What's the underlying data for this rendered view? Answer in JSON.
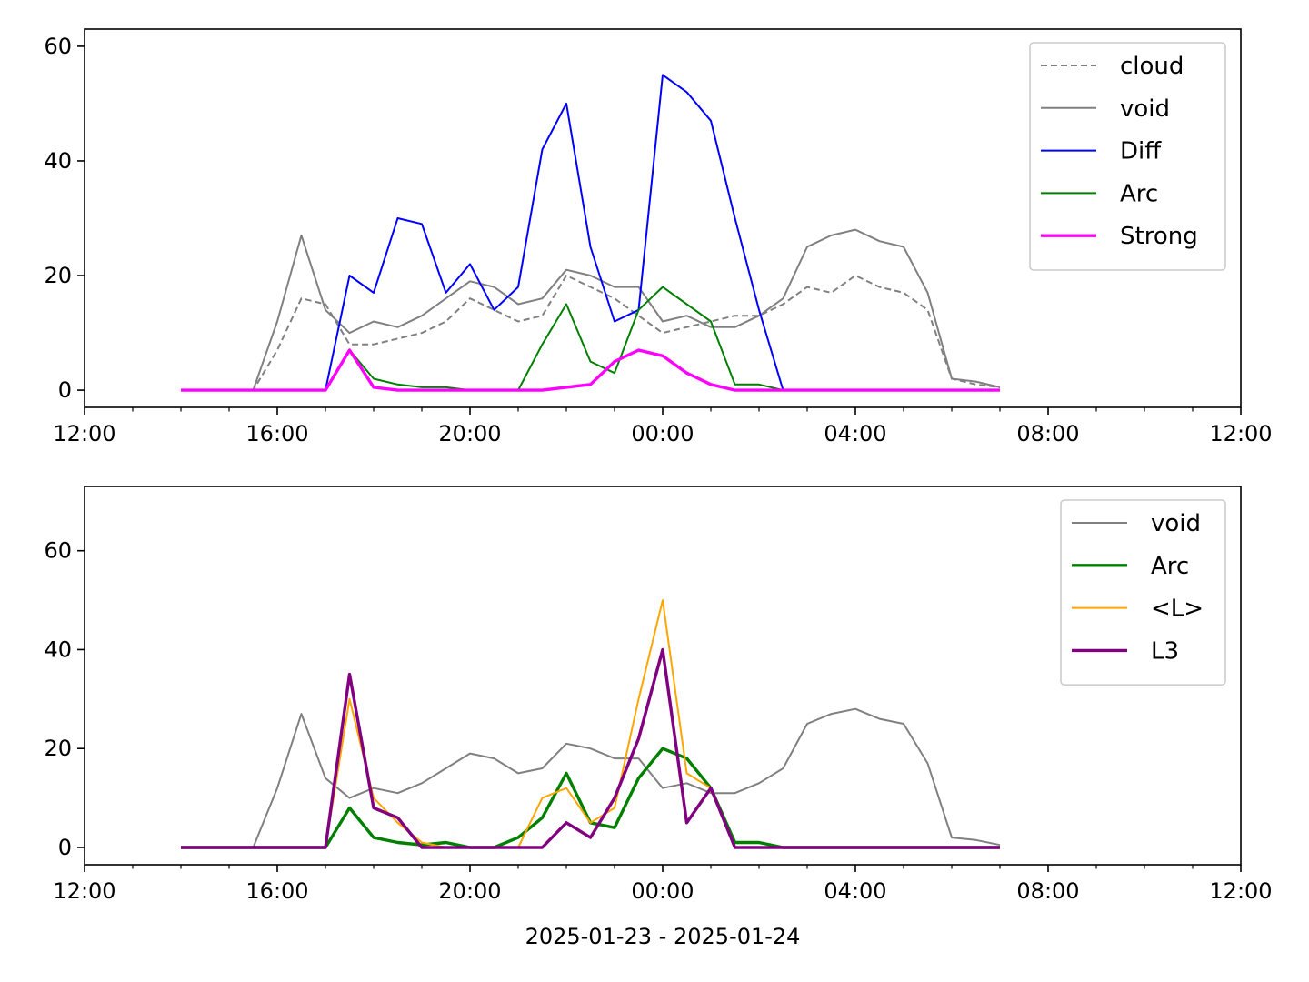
{
  "chart_data": [
    {
      "type": "line",
      "title": "",
      "xlabel": "",
      "ylabel": "",
      "xlim": [
        "2025-01-23 12:00",
        "2025-01-24 12:00"
      ],
      "ylim": [
        -3,
        63
      ],
      "x_ticks": [
        "12:00",
        "16:00",
        "20:00",
        "00:00",
        "04:00",
        "08:00",
        "12:00"
      ],
      "y_ticks": [
        0,
        20,
        40,
        60
      ],
      "legend_position": "top-right",
      "grid": false,
      "x": [
        "14:00",
        "15:00",
        "15:30",
        "16:00",
        "16:30",
        "17:00",
        "17:30",
        "18:00",
        "18:30",
        "19:00",
        "19:30",
        "20:00",
        "20:30",
        "21:00",
        "21:30",
        "22:00",
        "22:30",
        "23:00",
        "23:30",
        "00:00",
        "00:30",
        "01:00",
        "01:30",
        "02:00",
        "02:30",
        "03:00",
        "03:30",
        "04:00",
        "04:30",
        "05:00",
        "05:30",
        "06:00",
        "06:30",
        "07:00"
      ],
      "series": [
        {
          "name": "cloud",
          "color": "#808080",
          "style": "dashed",
          "values": [
            0,
            0,
            0,
            7,
            16,
            15,
            8,
            8,
            9,
            10,
            12,
            16,
            14,
            12,
            13,
            20,
            18,
            16,
            13,
            10,
            11,
            12,
            13,
            13,
            15,
            18,
            17,
            20,
            18,
            17,
            14,
            2,
            1,
            0.5
          ]
        },
        {
          "name": "void",
          "color": "#808080",
          "style": "solid",
          "values": [
            0,
            0,
            0,
            12,
            27,
            14,
            10,
            12,
            11,
            13,
            16,
            19,
            18,
            15,
            16,
            21,
            20,
            18,
            18,
            12,
            13,
            11,
            11,
            13,
            16,
            25,
            27,
            28,
            26,
            25,
            17,
            2,
            1.5,
            0.5
          ]
        },
        {
          "name": "Diff",
          "color": "#0000ff",
          "style": "solid",
          "values": [
            0,
            0,
            0,
            0,
            0,
            0,
            20,
            17,
            30,
            29,
            17,
            22,
            14,
            18,
            42,
            50,
            25,
            12,
            14,
            55,
            52,
            47,
            30,
            14,
            0,
            0,
            0,
            0,
            0,
            0,
            0,
            0,
            0,
            0
          ]
        },
        {
          "name": "Arc",
          "color": "#008000",
          "style": "solid",
          "values": [
            0,
            0,
            0,
            0,
            0,
            0,
            7,
            2,
            1,
            0.5,
            0.5,
            0,
            0,
            0,
            8,
            15,
            5,
            3,
            14,
            18,
            15,
            12,
            1,
            1,
            0,
            0,
            0,
            0,
            0,
            0,
            0,
            0,
            0,
            0
          ]
        },
        {
          "name": "Strong",
          "color": "#ff00ff",
          "style": "solid-thick",
          "values": [
            0,
            0,
            0,
            0,
            0,
            0,
            7,
            0.5,
            0,
            0,
            0,
            0,
            0,
            0,
            0,
            0.5,
            1,
            5,
            7,
            6,
            3,
            1,
            0,
            0,
            0,
            0,
            0,
            0,
            0,
            0,
            0,
            0,
            0,
            0
          ]
        }
      ]
    },
    {
      "type": "line",
      "title": "",
      "xlabel": "2025-01-23 - 2025-01-24",
      "ylabel": "",
      "xlim": [
        "2025-01-23 12:00",
        "2025-01-24 12:00"
      ],
      "ylim": [
        -3.5,
        73
      ],
      "x_ticks": [
        "12:00",
        "16:00",
        "20:00",
        "00:00",
        "04:00",
        "08:00",
        "12:00"
      ],
      "y_ticks": [
        0,
        20,
        40,
        60
      ],
      "legend_position": "top-right",
      "grid": false,
      "x": [
        "14:00",
        "15:00",
        "15:30",
        "16:00",
        "16:30",
        "17:00",
        "17:30",
        "18:00",
        "18:30",
        "19:00",
        "19:30",
        "20:00",
        "20:30",
        "21:00",
        "21:30",
        "22:00",
        "22:30",
        "23:00",
        "23:30",
        "00:00",
        "00:30",
        "01:00",
        "01:30",
        "02:00",
        "02:30",
        "03:00",
        "03:30",
        "04:00",
        "04:30",
        "05:00",
        "05:30",
        "06:00",
        "06:30",
        "07:00"
      ],
      "series": [
        {
          "name": "void",
          "color": "#808080",
          "style": "solid",
          "values": [
            0,
            0,
            0,
            12,
            27,
            14,
            10,
            12,
            11,
            13,
            16,
            19,
            18,
            15,
            16,
            21,
            20,
            18,
            18,
            12,
            13,
            11,
            11,
            13,
            16,
            25,
            27,
            28,
            26,
            25,
            17,
            2,
            1.5,
            0.5
          ]
        },
        {
          "name": "Arc",
          "color": "#008000",
          "style": "solid-thick",
          "values": [
            0,
            0,
            0,
            0,
            0,
            0,
            8,
            2,
            1,
            0.5,
            1,
            0,
            0,
            2,
            6,
            15,
            5,
            4,
            14,
            20,
            18,
            12,
            1,
            1,
            0,
            0,
            0,
            0,
            0,
            0,
            0,
            0,
            0,
            0
          ]
        },
        {
          "name": "<L>",
          "color": "#ffa500",
          "style": "solid",
          "values": [
            0,
            0,
            0,
            0,
            0,
            0,
            30,
            10,
            5,
            1,
            0,
            0,
            0,
            0,
            10,
            12,
            5,
            8,
            30,
            50,
            15,
            12,
            0,
            0,
            0,
            0,
            0,
            0,
            0,
            0,
            0,
            0,
            0,
            0
          ]
        },
        {
          "name": "L3",
          "color": "#800080",
          "style": "solid-thick",
          "values": [
            0,
            0,
            0,
            0,
            0,
            0,
            35,
            8,
            6,
            0,
            0,
            0,
            0,
            0,
            0,
            5,
            2,
            10,
            22,
            40,
            5,
            12,
            0,
            0,
            0,
            0,
            0,
            0,
            0,
            0,
            0,
            0,
            0,
            0
          ]
        }
      ]
    }
  ]
}
